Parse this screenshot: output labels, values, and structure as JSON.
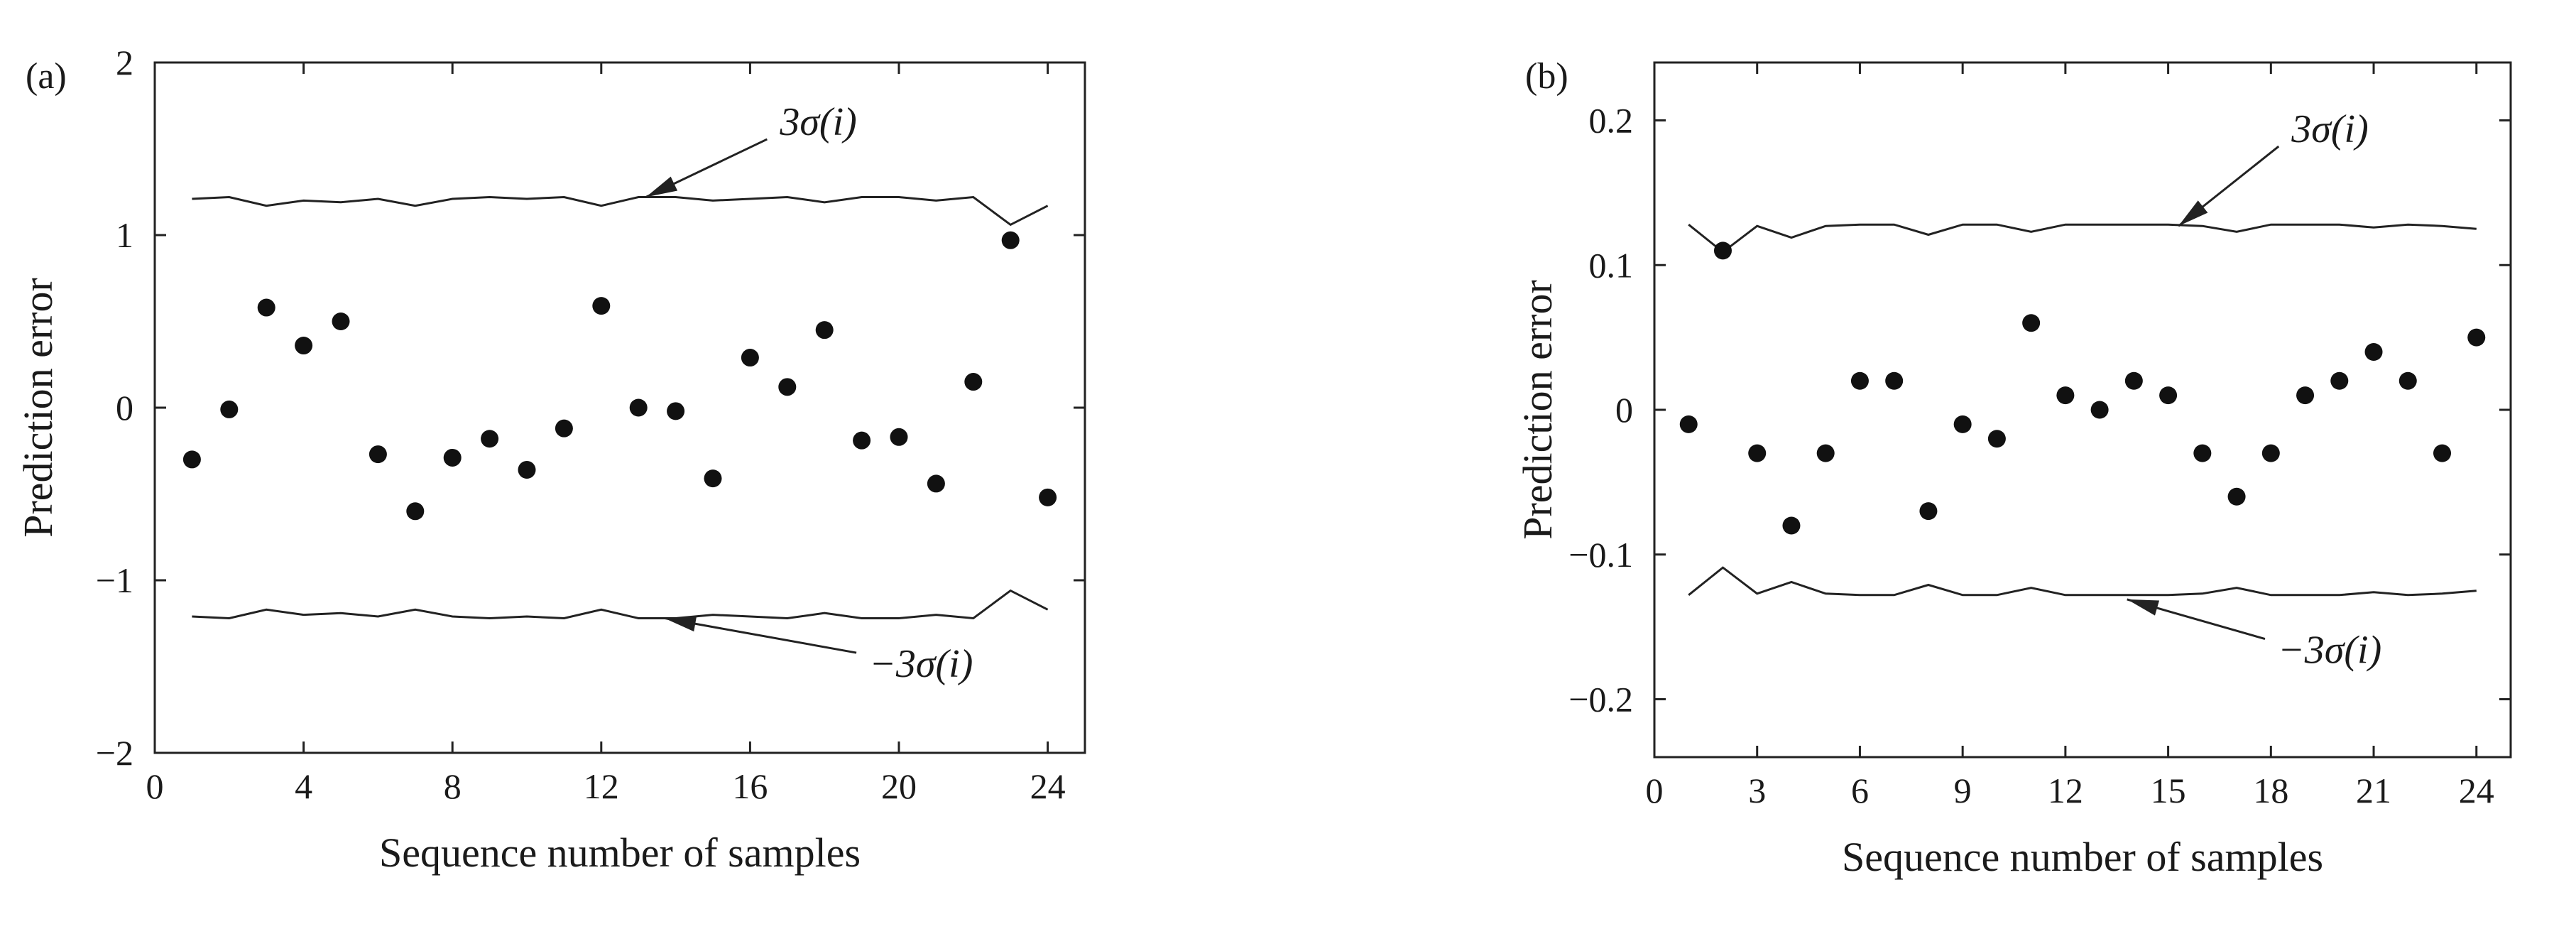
{
  "chart_data": [
    {
      "panel": "(a)",
      "type": "scatter",
      "xlabel": "Sequence number of samples",
      "ylabel": "Prediction error",
      "xlim": [
        0,
        25
      ],
      "ylim": [
        -2,
        2
      ],
      "xticks": [
        0,
        4,
        8,
        12,
        16,
        20,
        24
      ],
      "xtick_labels": [
        "0",
        "4",
        "8",
        "12",
        "16",
        "20",
        "24"
      ],
      "yticks": [
        -2,
        -1,
        0,
        1,
        2
      ],
      "ytick_labels": [
        "−2",
        "−1",
        "0",
        "1",
        "2"
      ],
      "grid": false,
      "points": {
        "x": [
          1,
          2,
          3,
          4,
          5,
          6,
          7,
          8,
          9,
          10,
          11,
          12,
          13,
          14,
          15,
          16,
          17,
          18,
          19,
          20,
          21,
          22,
          23,
          24
        ],
        "y": [
          -0.3,
          -0.01,
          0.58,
          0.36,
          0.5,
          -0.27,
          -0.6,
          -0.29,
          -0.18,
          -0.36,
          -0.12,
          0.59,
          0.0,
          -0.02,
          -0.41,
          0.29,
          0.12,
          0.45,
          -0.19,
          -0.17,
          -0.44,
          0.15,
          0.97,
          -0.52
        ]
      },
      "upper_bound": {
        "x": [
          1,
          2,
          3,
          4,
          5,
          6,
          7,
          8,
          9,
          10,
          11,
          12,
          13,
          14,
          15,
          16,
          17,
          18,
          19,
          20,
          21,
          22,
          23,
          24
        ],
        "y": [
          1.21,
          1.22,
          1.17,
          1.2,
          1.19,
          1.21,
          1.17,
          1.21,
          1.22,
          1.21,
          1.22,
          1.17,
          1.22,
          1.22,
          1.2,
          1.21,
          1.22,
          1.19,
          1.22,
          1.22,
          1.2,
          1.22,
          1.06,
          1.17
        ]
      },
      "lower_bound": {
        "x": [
          1,
          2,
          3,
          4,
          5,
          6,
          7,
          8,
          9,
          10,
          11,
          12,
          13,
          14,
          15,
          16,
          17,
          18,
          19,
          20,
          21,
          22,
          23,
          24
        ],
        "y": [
          -1.21,
          -1.22,
          -1.17,
          -1.2,
          -1.19,
          -1.21,
          -1.17,
          -1.21,
          -1.22,
          -1.21,
          -1.22,
          -1.17,
          -1.22,
          -1.22,
          -1.2,
          -1.21,
          -1.22,
          -1.19,
          -1.22,
          -1.22,
          -1.2,
          -1.22,
          -1.06,
          -1.17
        ]
      },
      "annotations": [
        {
          "text": "3σ(i)",
          "points_to": [
            13.2,
            1.22
          ],
          "label_at": [
            16.8,
            1.58
          ]
        },
        {
          "text": "−3σ(i)",
          "points_to": [
            13.7,
            -1.22
          ],
          "label_at": [
            19.2,
            -1.56
          ]
        }
      ]
    },
    {
      "panel": "(b)",
      "type": "scatter",
      "xlabel": "Sequence number of samples",
      "ylabel": "Prediction error",
      "xlim": [
        0,
        25
      ],
      "ylim": [
        -0.24,
        0.24
      ],
      "xticks": [
        0,
        3,
        6,
        9,
        12,
        15,
        18,
        21,
        24
      ],
      "xtick_labels": [
        "0",
        "3",
        "6",
        "9",
        "12",
        "15",
        "18",
        "21",
        "24"
      ],
      "yticks": [
        -0.2,
        -0.1,
        0,
        0.1,
        0.2
      ],
      "ytick_labels": [
        "−0.2",
        "−0.1",
        "0",
        "0.1",
        "0.2"
      ],
      "grid": false,
      "points": {
        "x": [
          1,
          2,
          3,
          4,
          5,
          6,
          7,
          8,
          9,
          10,
          11,
          12,
          13,
          14,
          15,
          16,
          17,
          18,
          19,
          20,
          21,
          22,
          23,
          24
        ],
        "y": [
          -0.01,
          0.11,
          -0.03,
          -0.08,
          -0.03,
          0.02,
          0.02,
          -0.07,
          -0.01,
          -0.02,
          0.06,
          0.01,
          0.0,
          0.02,
          0.01,
          -0.03,
          -0.06,
          -0.03,
          0.01,
          0.02,
          0.04,
          0.02,
          -0.03,
          0.05
        ]
      },
      "upper_bound": {
        "x": [
          1,
          2,
          3,
          4,
          5,
          6,
          7,
          8,
          9,
          10,
          11,
          12,
          13,
          14,
          15,
          16,
          17,
          18,
          19,
          20,
          21,
          22,
          23,
          24
        ],
        "y": [
          0.128,
          0.109,
          0.127,
          0.119,
          0.127,
          0.128,
          0.128,
          0.121,
          0.128,
          0.128,
          0.123,
          0.128,
          0.128,
          0.128,
          0.128,
          0.127,
          0.123,
          0.128,
          0.128,
          0.128,
          0.126,
          0.128,
          0.127,
          0.125
        ]
      },
      "lower_bound": {
        "x": [
          1,
          2,
          3,
          4,
          5,
          6,
          7,
          8,
          9,
          10,
          11,
          12,
          13,
          14,
          15,
          16,
          17,
          18,
          19,
          20,
          21,
          22,
          23,
          24
        ],
        "y": [
          -0.128,
          -0.109,
          -0.127,
          -0.119,
          -0.127,
          -0.128,
          -0.128,
          -0.121,
          -0.128,
          -0.128,
          -0.123,
          -0.128,
          -0.128,
          -0.128,
          -0.128,
          -0.127,
          -0.123,
          -0.128,
          -0.128,
          -0.128,
          -0.126,
          -0.128,
          -0.127,
          -0.125
        ]
      },
      "annotations": [
        {
          "text": "3σ(i)",
          "points_to": [
            15.3,
            0.127
          ],
          "label_at": [
            18.6,
            0.185
          ]
        },
        {
          "text": "−3σ(i)",
          "points_to": [
            13.8,
            -0.131
          ],
          "label_at": [
            18.2,
            -0.175
          ]
        }
      ]
    }
  ]
}
